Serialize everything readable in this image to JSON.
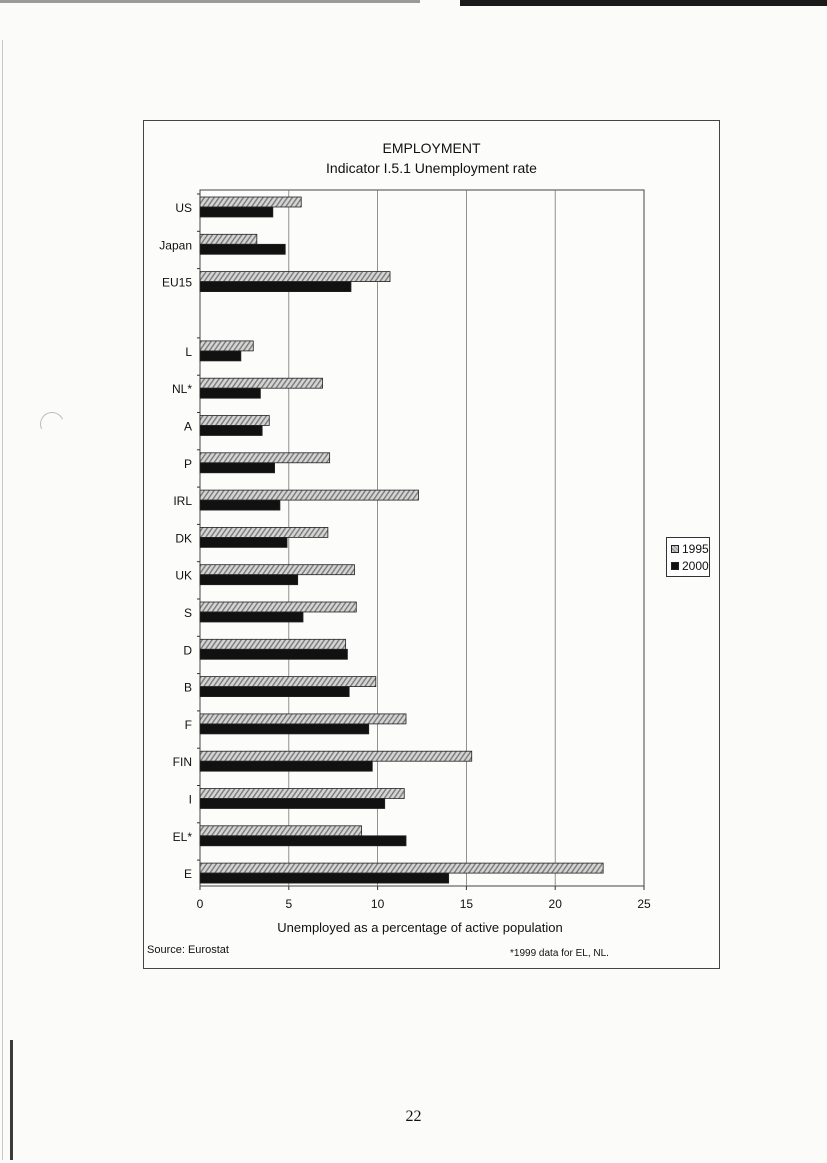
{
  "chart_data": {
    "type": "bar",
    "orientation": "horizontal",
    "title": "EMPLOYMENT",
    "subtitle": "Indicator I.5.1 Unemployment rate",
    "xlabel": "Unemployed as a percentage of active population",
    "ylabel": "",
    "xlim": [
      0,
      25
    ],
    "xticks": [
      "0",
      "5",
      "10",
      "15",
      "20",
      "25"
    ],
    "grid": "vertical",
    "legend_position": "right",
    "categories": [
      "US",
      "Japan",
      "EU15",
      "L",
      "NL*",
      "A",
      "P",
      "IRL",
      "DK",
      "UK",
      "S",
      "D",
      "B",
      "F",
      "FIN",
      "I",
      "EL*",
      "E"
    ],
    "gap_after_index": 2,
    "series": [
      {
        "name": "1995",
        "color": "#bdbdbd",
        "values": [
          5.7,
          3.2,
          10.7,
          3.0,
          6.9,
          3.9,
          7.3,
          12.3,
          7.2,
          8.7,
          8.8,
          8.2,
          9.9,
          11.6,
          15.3,
          11.5,
          9.1,
          22.7
        ]
      },
      {
        "name": "2000",
        "color": "#111111",
        "values": [
          4.1,
          4.8,
          8.5,
          2.3,
          3.4,
          3.5,
          4.2,
          4.5,
          4.9,
          5.5,
          5.8,
          8.3,
          8.4,
          9.5,
          9.7,
          10.4,
          11.6,
          14.0
        ]
      }
    ]
  },
  "source": "Source: Eurostat",
  "footnote": "*1999 data for EL, NL.",
  "page_number": "22"
}
